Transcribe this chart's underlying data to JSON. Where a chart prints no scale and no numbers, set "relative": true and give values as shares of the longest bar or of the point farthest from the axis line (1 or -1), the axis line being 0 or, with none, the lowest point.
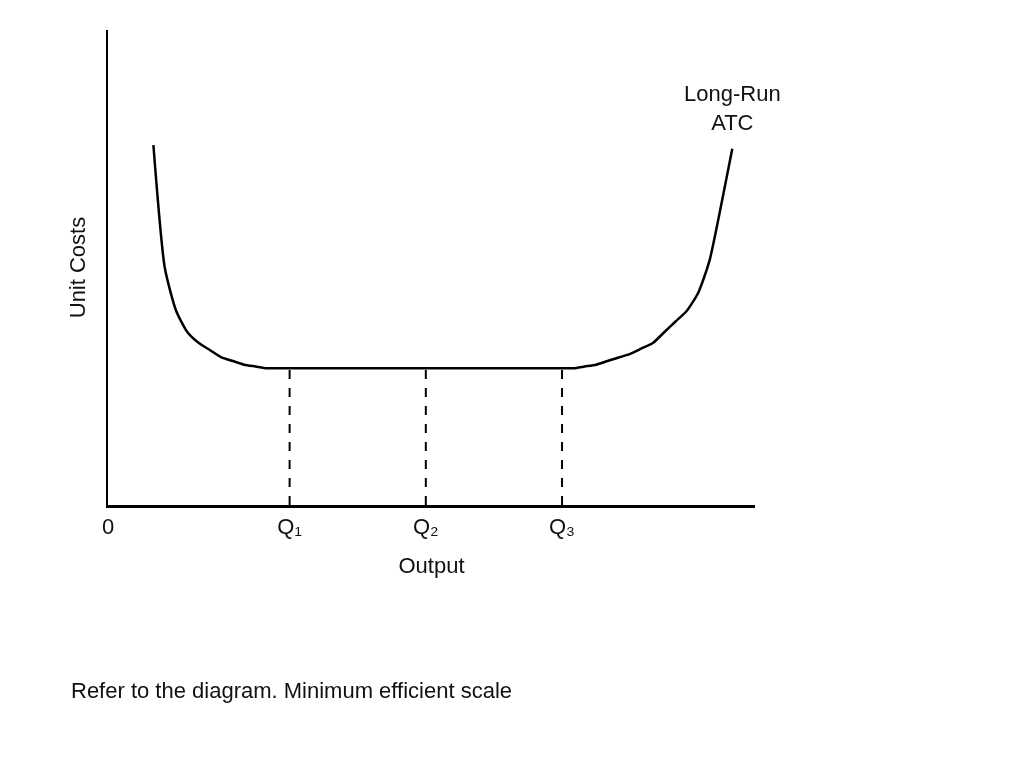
{
  "chart_data": {
    "type": "line",
    "relative": true,
    "ylabel": "Unit Costs",
    "xlabel": "Output",
    "categories": [
      "0",
      null,
      null,
      null,
      null,
      null,
      null,
      null,
      null,
      null,
      null,
      null,
      null,
      null,
      null,
      null,
      "Q₁",
      null,
      null,
      null,
      null,
      null,
      null,
      null,
      null,
      null,
      null,
      null,
      "Q₂",
      null,
      null,
      null,
      null,
      null,
      null,
      null,
      null,
      null,
      null,
      null,
      "Q₃",
      null,
      null,
      null,
      null,
      null,
      null,
      null,
      null,
      null,
      null,
      null,
      null,
      null,
      null,
      null
    ],
    "series": [
      {
        "name": "Long-Run ATC",
        "color": "#000000",
        "values": [
          null,
          null,
          null,
          null,
          1,
          0.66,
          0.54,
          0.48,
          0.45,
          0.43,
          0.41,
          0.4,
          0.39,
          0.385,
          0.38,
          0.38,
          0.38,
          0.38,
          0.38,
          0.38,
          0.38,
          0.38,
          0.38,
          0.38,
          0.38,
          0.38,
          0.38,
          0.38,
          0.38,
          0.38,
          0.38,
          0.38,
          0.38,
          0.38,
          0.38,
          0.38,
          0.38,
          0.38,
          0.38,
          0.38,
          0.38,
          0.38,
          0.385,
          0.39,
          0.4,
          0.41,
          0.42,
          0.435,
          0.45,
          0.48,
          0.51,
          0.54,
          0.59,
          0.68,
          0.83,
          0.99
        ]
      }
    ],
    "ref_lines": [
      {
        "axis": "x",
        "value": "Q₁",
        "line_style": "dashed",
        "color": "#000000"
      },
      {
        "axis": "x",
        "value": "Q₂",
        "line_style": "dashed",
        "color": "#000000"
      },
      {
        "axis": "x",
        "value": "Q₃",
        "line_style": "dashed",
        "color": "#000000"
      }
    ],
    "annotations": [
      "Refer to the diagram. Minimum efficient scale"
    ],
    "grid": false,
    "legend": false,
    "marker": "none",
    "line_style": "solid"
  }
}
